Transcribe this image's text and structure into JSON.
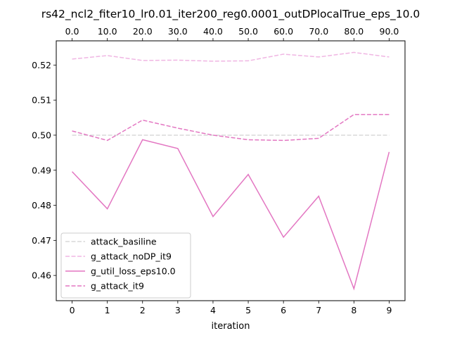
{
  "chart_data": {
    "type": "line",
    "title": "rs42_ncl2_fiter10_lr0.01_iter200_reg0.0001_outDPlocalTrue_eps_10.0",
    "xlabel": "iteration",
    "ylabel": "",
    "x": [
      0,
      1,
      2,
      3,
      4,
      5,
      6,
      7,
      8,
      9
    ],
    "xticks": [
      "0",
      "1",
      "2",
      "3",
      "4",
      "5",
      "6",
      "7",
      "8",
      "9"
    ],
    "xlim": [
      -0.45,
      9.45
    ],
    "top_xticks": [
      "0.0",
      "10.0",
      "20.0",
      "30.0",
      "40.0",
      "50.0",
      "60.0",
      "70.0",
      "80.0",
      "90.0"
    ],
    "ylim": [
      0.4528,
      0.5269
    ],
    "yticks": [
      0.46,
      0.47,
      0.48,
      0.49,
      0.5,
      0.51,
      0.52
    ],
    "ytick_labels": [
      "0.46",
      "0.47",
      "0.48",
      "0.49",
      "0.50",
      "0.51",
      "0.52"
    ],
    "grid": false,
    "legend_position": "lower-left",
    "series": [
      {
        "name": "attack_basiline",
        "color": "#d9d9d9",
        "dash": "dashed",
        "values": [
          0.5,
          0.5,
          0.5,
          0.5,
          0.5,
          0.5,
          0.5,
          0.5,
          0.5,
          0.5
        ]
      },
      {
        "name": "g_attack_noDP_it9",
        "color": "#f0b6e3",
        "dash": "dashed",
        "values": [
          0.5217,
          0.5227,
          0.5213,
          0.5214,
          0.5211,
          0.5212,
          0.5231,
          0.5223,
          0.5236,
          0.5223
        ]
      },
      {
        "name": "g_util_loss_eps10.0",
        "color": "#e377c2",
        "dash": "solid",
        "values": [
          0.4896,
          0.479,
          0.4987,
          0.4962,
          0.4768,
          0.4888,
          0.4709,
          0.4826,
          0.4562,
          0.4952
        ]
      },
      {
        "name": "g_attack_it9",
        "color": "#e377c2",
        "dash": "dashed",
        "values": [
          0.5012,
          0.4985,
          0.5043,
          0.502,
          0.5,
          0.4987,
          0.4985,
          0.4991,
          0.5059,
          0.5059
        ]
      }
    ]
  }
}
